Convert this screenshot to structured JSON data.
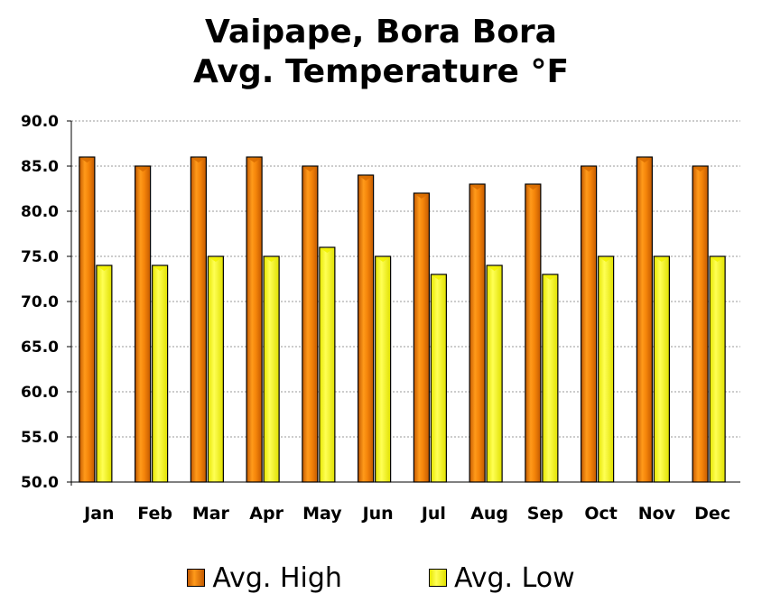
{
  "chart_data": {
    "type": "bar",
    "title": [
      "Vaipape, Bora Bora",
      "Avg. Temperature °F"
    ],
    "categories": [
      "Jan",
      "Feb",
      "Mar",
      "Apr",
      "May",
      "Jun",
      "Jul",
      "Aug",
      "Sep",
      "Oct",
      "Nov",
      "Dec"
    ],
    "series": [
      {
        "name": "Avg. High",
        "color": "#f08c10",
        "values": [
          86,
          85,
          86,
          86,
          85,
          84,
          82,
          83,
          83,
          85,
          86,
          85
        ]
      },
      {
        "name": "Avg. Low",
        "color": "#ffff33",
        "values": [
          74,
          74,
          75,
          75,
          76,
          75,
          73,
          74,
          73,
          75,
          75,
          75
        ]
      }
    ],
    "ylim": [
      50,
      90
    ],
    "yticks": [
      "50.0",
      "55.0",
      "60.0",
      "65.0",
      "70.0",
      "75.0",
      "80.0",
      "85.0",
      "90.0"
    ],
    "ytick_step": 5,
    "grid": true,
    "legend_position": "bottom"
  }
}
